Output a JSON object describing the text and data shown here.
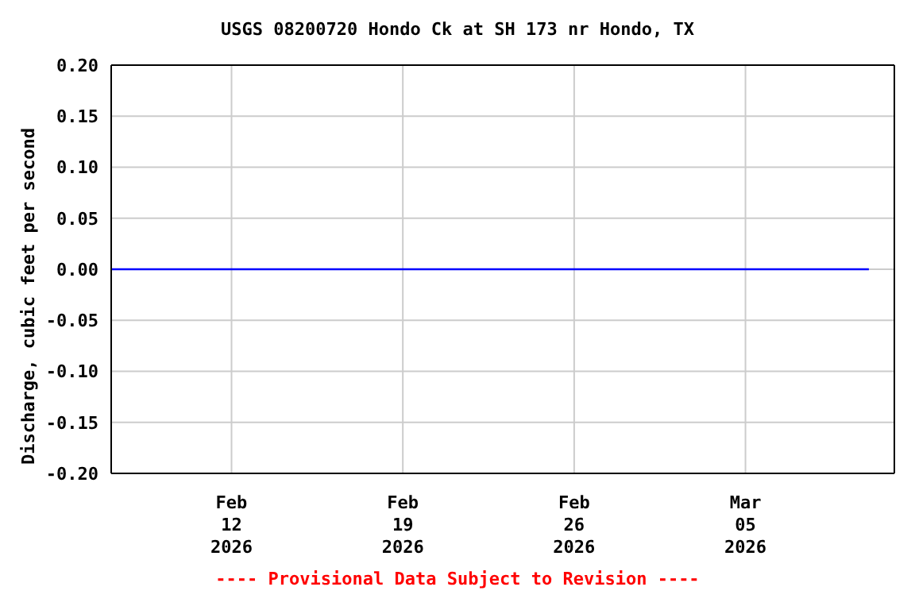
{
  "chart_data": {
    "type": "line",
    "title": "USGS 08200720 Hondo Ck at SH 173 nr Hondo, TX",
    "ylabel": "Discharge, cubic feet per second",
    "annotations": [
      "---- Provisional Data Subject to Revision ----"
    ],
    "series": [
      {
        "color": "#0000ff",
        "x": [
          "2026-02-07T02:00",
          "2026-03-10T01:00"
        ],
        "values": [
          0,
          0
        ]
      }
    ],
    "xlim": [
      "2026-02-07T02:00",
      "2026-03-11T02:00"
    ],
    "xticks": [
      {
        "value": "2026-02-12",
        "label": "Feb\n12\n2026"
      },
      {
        "value": "2026-02-19",
        "label": "Feb\n19\n2026"
      },
      {
        "value": "2026-02-26",
        "label": "Feb\n26\n2026"
      },
      {
        "value": "2026-03-05",
        "label": "Mar\n05\n2026"
      }
    ],
    "ylim": [
      -0.2,
      0.2
    ],
    "yticks": [
      {
        "value": -0.2,
        "label": "-0.20"
      },
      {
        "value": -0.15,
        "label": "-0.15"
      },
      {
        "value": -0.1,
        "label": "-0.10"
      },
      {
        "value": -0.05,
        "label": "-0.05"
      },
      {
        "value": 0,
        "label": "0.00"
      },
      {
        "value": 0.05,
        "label": "0.05"
      },
      {
        "value": 0.1,
        "label": "0.10"
      },
      {
        "value": 0.15,
        "label": "0.15"
      },
      {
        "value": 0.2,
        "label": "0.20"
      }
    ],
    "grid": true,
    "legend": false,
    "marker": "none",
    "line_style": "solid"
  }
}
